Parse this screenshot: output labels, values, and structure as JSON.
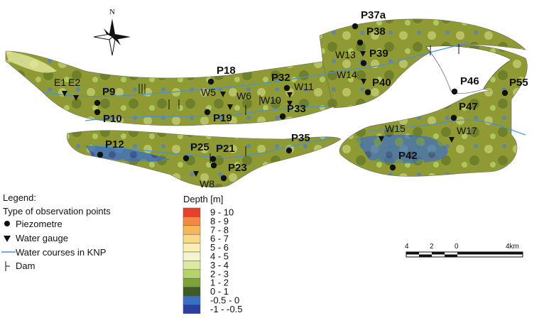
{
  "north_label": "N",
  "colors": {
    "map_base": "#8f9a35",
    "map_light": "#cbd27a",
    "map_dark": "#556b22",
    "water_blue": "#3a6fc4",
    "watercourse": "#4a90d9",
    "deep_blue": "#2b3f9e"
  },
  "points": [
    {
      "name": "P37a",
      "kind": "piezometre"
    },
    {
      "name": "P38",
      "kind": "piezometre"
    },
    {
      "name": "W13",
      "kind": "gauge"
    },
    {
      "name": "P39",
      "kind": "piezometre"
    },
    {
      "name": "W14",
      "kind": "gauge"
    },
    {
      "name": "P40",
      "kind": "piezometre"
    },
    {
      "name": "P18",
      "kind": "piezometre"
    },
    {
      "name": "P32",
      "kind": "piezometre"
    },
    {
      "name": "W11",
      "kind": "gauge"
    },
    {
      "name": "W10",
      "kind": "gauge"
    },
    {
      "name": "P33",
      "kind": "piezometre"
    },
    {
      "name": "W5",
      "kind": "gauge"
    },
    {
      "name": "W6",
      "kind": "gauge"
    },
    {
      "name": "P19",
      "kind": "piezometre"
    },
    {
      "name": "E1",
      "kind": "gauge"
    },
    {
      "name": "E2",
      "kind": "gauge"
    },
    {
      "name": "P9",
      "kind": "piezometre"
    },
    {
      "name": "P10",
      "kind": "piezometre"
    },
    {
      "name": "P46",
      "kind": "piezometre"
    },
    {
      "name": "P55",
      "kind": "piezometre"
    },
    {
      "name": "P47",
      "kind": "piezometre"
    },
    {
      "name": "W15",
      "kind": "gauge"
    },
    {
      "name": "W17",
      "kind": "gauge"
    },
    {
      "name": "P35",
      "kind": "piezometre"
    },
    {
      "name": "P42",
      "kind": "piezometre"
    },
    {
      "name": "P12",
      "kind": "piezometre"
    },
    {
      "name": "P25",
      "kind": "piezometre"
    },
    {
      "name": "P21",
      "kind": "piezometre"
    },
    {
      "name": "P23",
      "kind": "piezometre"
    },
    {
      "name": "W8",
      "kind": "gauge"
    }
  ],
  "legend": {
    "title": "Legend:",
    "subtitle": "Type of observation points",
    "items": [
      {
        "icon": "piezometre-dot-icon",
        "label": "Piezometre"
      },
      {
        "icon": "water-gauge-triangle-icon",
        "label": "Water gauge"
      },
      {
        "icon": "water-course-line-icon",
        "label": "Water courses in KNP"
      },
      {
        "icon": "dam-icon",
        "label": "Dam"
      }
    ]
  },
  "depth_legend": {
    "title": "Depth [m]",
    "classes": [
      {
        "label": "9 - 10",
        "color": "#e8402a"
      },
      {
        "label": "8 - 9",
        "color": "#f08a45"
      },
      {
        "label": "7 - 8",
        "color": "#f5b75a"
      },
      {
        "label": "6 - 7",
        "color": "#f8d985"
      },
      {
        "label": "5 - 6",
        "color": "#fbeeb3"
      },
      {
        "label": "4 - 5",
        "color": "#f4f4cf"
      },
      {
        "label": "3 - 4",
        "color": "#dbe9a2"
      },
      {
        "label": "2 - 3",
        "color": "#b5d36a"
      },
      {
        "label": "1 - 2",
        "color": "#7ea33a"
      },
      {
        "label": "0 - 1",
        "color": "#3f5a22"
      },
      {
        "label": "-0.5 - 0",
        "color": "#3a6fc4"
      },
      {
        "label": "-1 - -0.5",
        "color": "#2b3f9e"
      }
    ]
  },
  "scale_bar": {
    "ticks": [
      "4",
      "2",
      "0",
      "4km"
    ]
  }
}
